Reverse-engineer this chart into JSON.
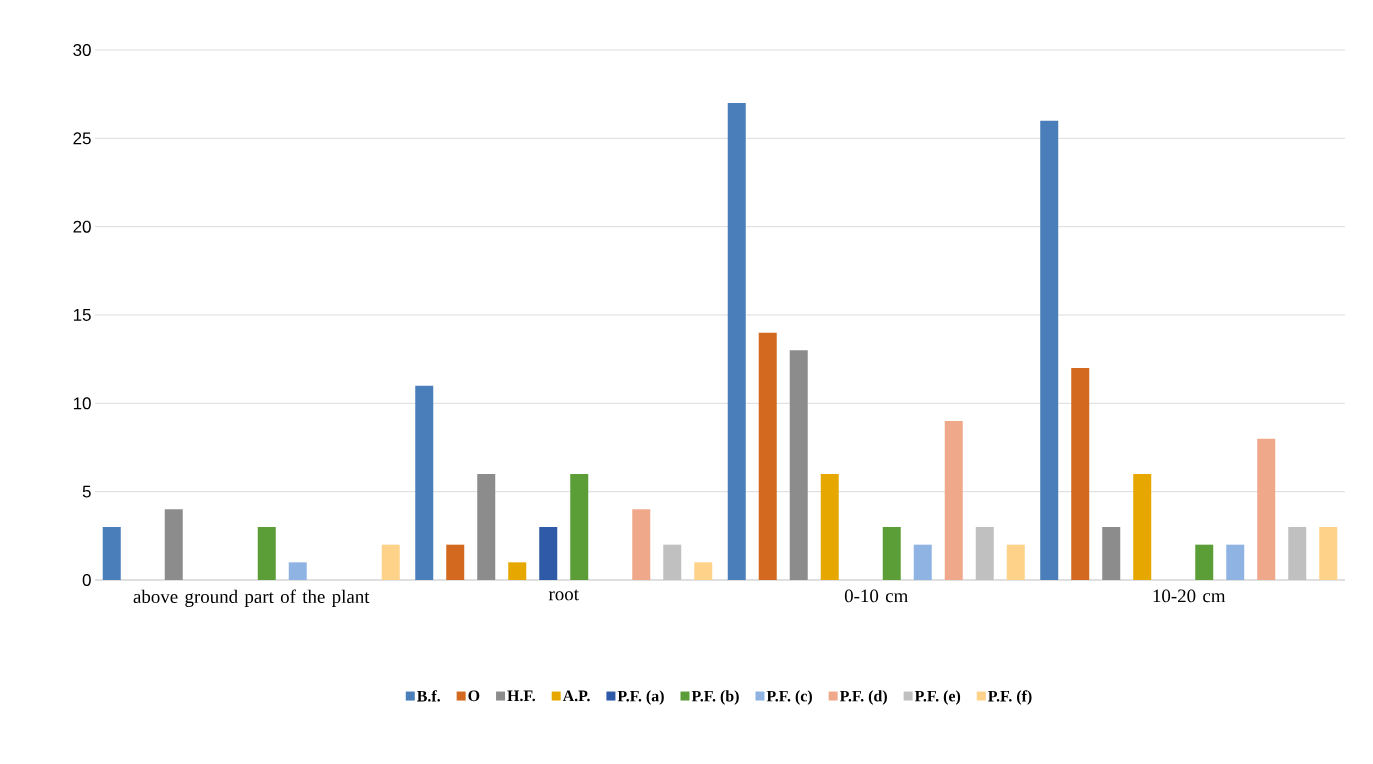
{
  "chart_data": {
    "type": "bar",
    "categories": [
      "above ground part of the plant",
      "root",
      "0-10 cm",
      "10-20 cm"
    ],
    "series": [
      {
        "name": "B.f.",
        "color": "#4a7ebb",
        "values": [
          3,
          11,
          27,
          26
        ]
      },
      {
        "name": "O",
        "color": "#d2691e",
        "values": [
          0,
          2,
          14,
          12
        ]
      },
      {
        "name": "H.F.",
        "color": "#8c8c8c",
        "values": [
          4,
          6,
          13,
          3
        ]
      },
      {
        "name": "A.P.",
        "color": "#e6a800",
        "values": [
          0,
          1,
          6,
          6
        ]
      },
      {
        "name": "P.F. (a)",
        "color": "#2e5aa8",
        "values": [
          0,
          3,
          0,
          0
        ]
      },
      {
        "name": "P.F. (b)",
        "color": "#5b9e37",
        "values": [
          3,
          6,
          3,
          2
        ]
      },
      {
        "name": "P.F. (c)",
        "color": "#8fb4e3",
        "values": [
          1,
          0,
          2,
          2
        ]
      },
      {
        "name": "P.F. (d)",
        "color": "#f0a88a",
        "values": [
          0,
          4,
          9,
          8
        ]
      },
      {
        "name": "P.F. (e)",
        "color": "#c0c0c0",
        "values": [
          0,
          2,
          3,
          3
        ]
      },
      {
        "name": "P.F. (f)",
        "color": "#ffd28a",
        "values": [
          2,
          1,
          2,
          3
        ]
      }
    ],
    "ylim": [
      0,
      30
    ],
    "yticks": [
      0,
      5,
      10,
      15,
      20,
      25,
      30
    ],
    "grid": "y",
    "legend": "bottom"
  }
}
